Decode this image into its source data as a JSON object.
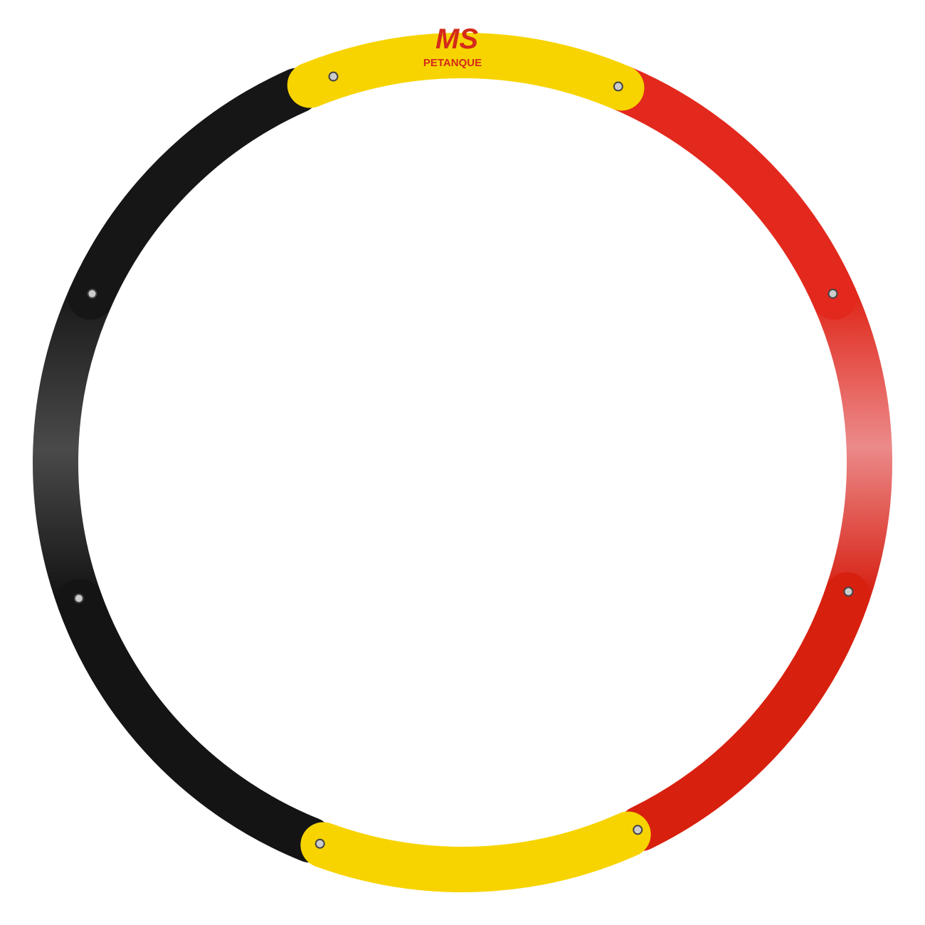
{
  "logo": {
    "mark": "MS",
    "name": "PETANQUE"
  }
}
